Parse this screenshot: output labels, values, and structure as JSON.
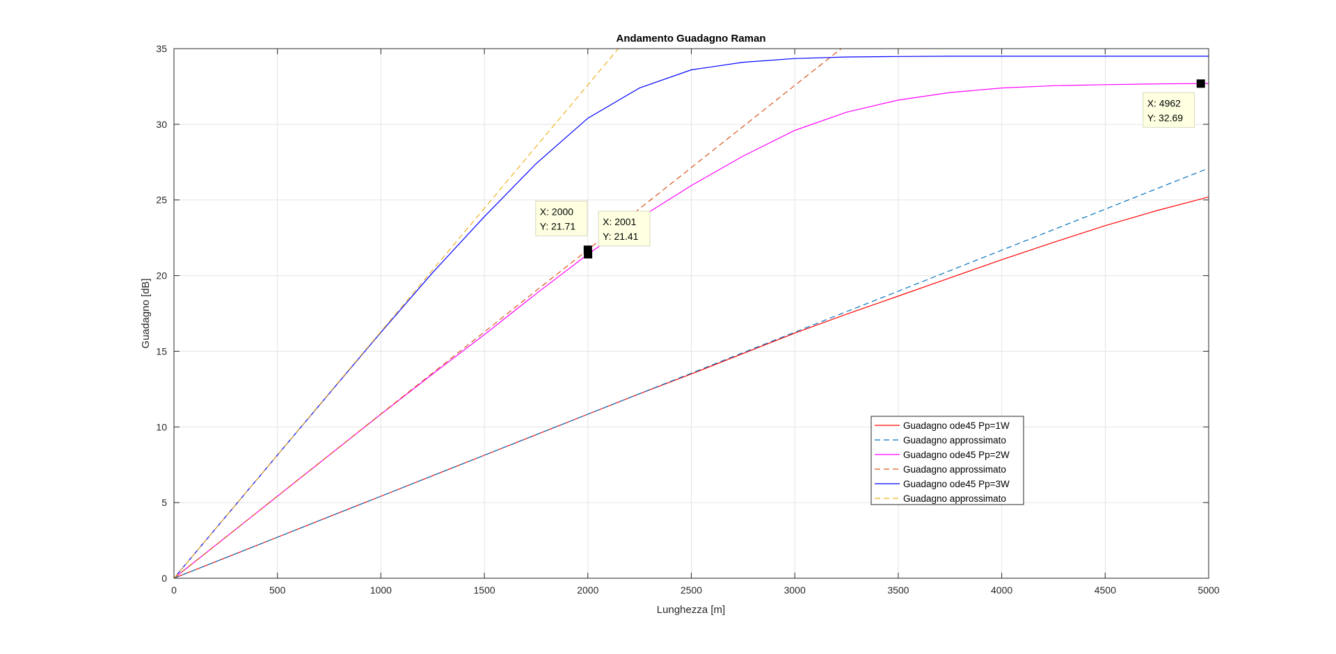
{
  "chart_data": {
    "type": "line",
    "title": "Andamento Guadagno Raman",
    "xlabel": "Lunghezza [m]",
    "ylabel": "Guadagno [dB]",
    "xlim": [
      0,
      5000
    ],
    "ylim": [
      0,
      35
    ],
    "xticks": [
      "0",
      "500",
      "1000",
      "1500",
      "2000",
      "2500",
      "3000",
      "3500",
      "4000",
      "4500",
      "5000"
    ],
    "yticks": [
      "0",
      "5",
      "10",
      "15",
      "20",
      "25",
      "30",
      "35"
    ],
    "grid": true,
    "legend_position": "lower-right",
    "x": [
      0,
      250,
      500,
      750,
      1000,
      1250,
      1500,
      1750,
      2000,
      2250,
      2500,
      2750,
      3000,
      3250,
      3500,
      3750,
      4000,
      4250,
      4500,
      4750,
      5000
    ],
    "series": [
      {
        "name": "Guadagno ode45 Pp=1W",
        "color": "#ff0000",
        "dash": false,
        "values": [
          0,
          1.36,
          2.71,
          4.07,
          5.42,
          6.78,
          8.13,
          9.48,
          10.84,
          12.19,
          13.5,
          14.85,
          16.2,
          17.45,
          18.65,
          19.85,
          21.05,
          22.2,
          23.3,
          24.3,
          25.2
        ]
      },
      {
        "name": "Guadagno approssimato",
        "color": "#0072bd",
        "dash": true,
        "values": [
          0,
          1.36,
          2.71,
          4.07,
          5.42,
          6.78,
          8.13,
          9.49,
          10.84,
          12.2,
          13.55,
          14.91,
          16.26,
          17.62,
          18.97,
          20.33,
          21.68,
          23.04,
          24.39,
          25.75,
          27.1
        ]
      },
      {
        "name": "Guadagno ode45 Pp=2W",
        "color": "#ff00ff",
        "dash": false,
        "values": [
          0,
          2.71,
          5.42,
          8.13,
          10.84,
          13.5,
          16.1,
          18.8,
          21.41,
          23.8,
          25.95,
          27.9,
          29.6,
          30.8,
          31.6,
          32.1,
          32.4,
          32.55,
          32.62,
          32.67,
          32.7
        ]
      },
      {
        "name": "Guadagno approssimato",
        "color": "#d95319",
        "dash": true,
        "values": [
          0,
          2.71,
          5.43,
          8.14,
          10.86,
          13.57,
          16.28,
          19.0,
          21.71,
          24.42,
          27.14,
          29.85,
          32.57,
          35.28,
          null,
          null,
          null,
          null,
          null,
          null,
          null
        ]
      },
      {
        "name": "Guadagno ode45 Pp=3W",
        "color": "#0000ff",
        "dash": false,
        "values": [
          0,
          4.07,
          8.14,
          12.2,
          16.25,
          20.2,
          23.9,
          27.4,
          30.4,
          32.4,
          33.6,
          34.1,
          34.35,
          34.45,
          34.48,
          34.5,
          34.5,
          34.5,
          34.5,
          34.5,
          34.5
        ]
      },
      {
        "name": "Guadagno approssimato",
        "color": "#edb120",
        "dash": true,
        "values": [
          0,
          4.08,
          8.15,
          12.23,
          16.3,
          20.38,
          24.45,
          28.53,
          32.6,
          36.68,
          null,
          null,
          null,
          null,
          null,
          null,
          null,
          null,
          null,
          null,
          null
        ]
      }
    ],
    "datatips": [
      {
        "x": 2000,
        "y": 21.71,
        "label_x": "X: 2000",
        "label_y": "Y: 21.71"
      },
      {
        "x": 2001,
        "y": 21.41,
        "label_x": "X: 2001",
        "label_y": "Y: 21.41"
      },
      {
        "x": 4962,
        "y": 32.69,
        "label_x": "X: 4962",
        "label_y": "Y: 32.69"
      }
    ]
  }
}
